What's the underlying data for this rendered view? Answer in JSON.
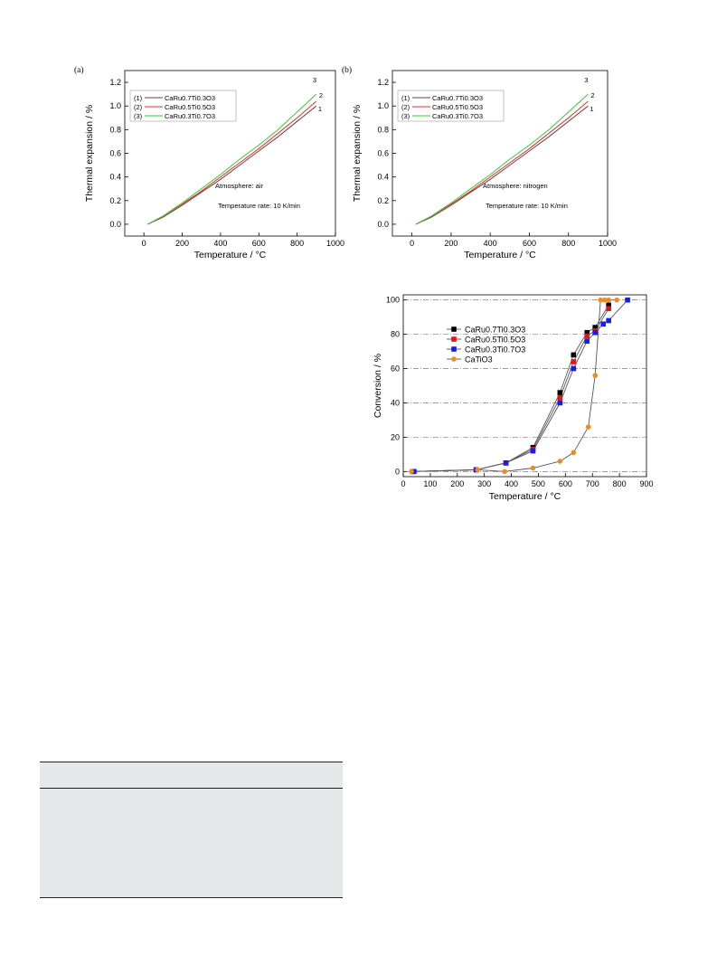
{
  "chart_data": [
    {
      "type": "line",
      "panel_label": "(a)",
      "xlabel": "Temperature / °C",
      "ylabel": "Thermal expansion / %",
      "xlim": [
        -100,
        1000
      ],
      "ylim": [
        -0.1,
        1.3
      ],
      "xticks": [
        "0",
        "200",
        "400",
        "600",
        "800",
        "1000"
      ],
      "yticks": [
        "0.0",
        "0.2",
        "0.4",
        "0.6",
        "0.8",
        "1.0",
        "1.2"
      ],
      "legend": [
        "(1) CaRu0.7Ti0.3O3",
        "(2) CaRu0.5Ti0.5O3",
        "(3) CaRu0.3Ti0.7O3"
      ],
      "legend_position": "upper-left",
      "annotations": [
        "Atmosphere: air",
        "Temperature rate: 10 K/min"
      ],
      "curve_labels": [
        "1",
        "2",
        "3"
      ],
      "series": [
        {
          "name": "CaRu0.7Ti0.3O3",
          "color": "#7a3a3a",
          "x": [
            20,
            100,
            200,
            300,
            400,
            500,
            600,
            700,
            800,
            900
          ],
          "y": [
            0.0,
            0.06,
            0.16,
            0.27,
            0.38,
            0.5,
            0.62,
            0.74,
            0.87,
            1.0
          ]
        },
        {
          "name": "CaRu0.5Ti0.5O3",
          "color": "#e03030",
          "x": [
            20,
            100,
            200,
            300,
            400,
            500,
            600,
            700,
            800,
            900
          ],
          "y": [
            0.0,
            0.07,
            0.17,
            0.28,
            0.4,
            0.52,
            0.64,
            0.77,
            0.9,
            1.04
          ]
        },
        {
          "name": "CaRu0.3Ti0.7O3",
          "color": "#33cc33",
          "x": [
            20,
            100,
            200,
            300,
            400,
            500,
            600,
            700,
            800,
            900
          ],
          "y": [
            0.0,
            0.07,
            0.18,
            0.3,
            0.42,
            0.55,
            0.67,
            0.8,
            0.95,
            1.1
          ]
        }
      ]
    },
    {
      "type": "line",
      "panel_label": "(b)",
      "xlabel": "Temperature / °C",
      "ylabel": "Thermal expansion / %",
      "xlim": [
        -100,
        1000
      ],
      "ylim": [
        -0.1,
        1.3
      ],
      "xticks": [
        "0",
        "200",
        "400",
        "600",
        "800",
        "1000"
      ],
      "yticks": [
        "0.0",
        "0.2",
        "0.4",
        "0.6",
        "0.8",
        "1.0",
        "1.2"
      ],
      "legend": [
        "(1) CaRu0.7Ti0.3O3",
        "(2) CaRu0.5Ti0.5O3",
        "(3) CaRu0.3Ti0.7O3"
      ],
      "legend_position": "upper-left",
      "annotations": [
        "Atmosphere: nitrogen",
        "Temperature rate: 10 K/min"
      ],
      "curve_labels": [
        "1",
        "2",
        "3"
      ],
      "series": [
        {
          "name": "CaRu0.7Ti0.3O3",
          "color": "#7a3a3a",
          "x": [
            20,
            100,
            200,
            300,
            400,
            500,
            600,
            700,
            800,
            900
          ],
          "y": [
            0.0,
            0.06,
            0.16,
            0.27,
            0.38,
            0.5,
            0.62,
            0.74,
            0.87,
            1.0
          ]
        },
        {
          "name": "CaRu0.5Ti0.5O3",
          "color": "#e03030",
          "x": [
            20,
            100,
            200,
            300,
            400,
            500,
            600,
            700,
            800,
            900
          ],
          "y": [
            0.0,
            0.07,
            0.17,
            0.28,
            0.4,
            0.52,
            0.64,
            0.77,
            0.9,
            1.04
          ]
        },
        {
          "name": "CaRu0.3Ti0.7O3",
          "color": "#33cc33",
          "x": [
            20,
            100,
            200,
            300,
            400,
            500,
            600,
            700,
            800,
            900
          ],
          "y": [
            0.0,
            0.07,
            0.18,
            0.3,
            0.42,
            0.55,
            0.67,
            0.8,
            0.95,
            1.1
          ]
        }
      ]
    },
    {
      "type": "line",
      "xlabel": "Temperature / °C",
      "ylabel": "Conversion / %",
      "xlim": [
        0,
        900
      ],
      "ylim": [
        -3,
        103
      ],
      "xticks": [
        "0",
        "100",
        "200",
        "300",
        "400",
        "500",
        "600",
        "700",
        "800",
        "900"
      ],
      "yticks": [
        "0",
        "20",
        "40",
        "60",
        "80",
        "100"
      ],
      "grid": "horizontal dash-dot",
      "legend_position": "upper-left",
      "series": [
        {
          "name": "CaRu0.7Ti0.3O3",
          "color": "#000000",
          "marker": "square",
          "x": [
            35,
            270,
            380,
            480,
            580,
            630,
            680,
            710,
            760
          ],
          "y": [
            0,
            1,
            5,
            14,
            46,
            68,
            81,
            84,
            97
          ]
        },
        {
          "name": "CaRu0.5Ti0.5O3",
          "color": "#ee1111",
          "marker": "square",
          "x": [
            35,
            270,
            380,
            480,
            580,
            630,
            680,
            710,
            760
          ],
          "y": [
            0,
            1,
            5,
            13,
            43,
            64,
            79,
            82,
            95
          ]
        },
        {
          "name": "CaRu0.3Ti0.7O3",
          "color": "#1a1aee",
          "marker": "square",
          "x": [
            40,
            270,
            380,
            480,
            580,
            630,
            680,
            710,
            740,
            760,
            830
          ],
          "y": [
            0,
            1,
            5,
            12,
            40,
            60,
            76,
            81,
            86,
            88,
            100
          ]
        },
        {
          "name": "CaTiO3",
          "color": "#f08c1e",
          "marker": "circle",
          "x": [
            30,
            275,
            375,
            480,
            580,
            630,
            685,
            710,
            730,
            745,
            760,
            790
          ],
          "y": [
            0,
            1,
            0,
            2,
            6,
            11,
            26,
            56,
            100,
            100,
            100,
            100
          ]
        }
      ]
    }
  ]
}
